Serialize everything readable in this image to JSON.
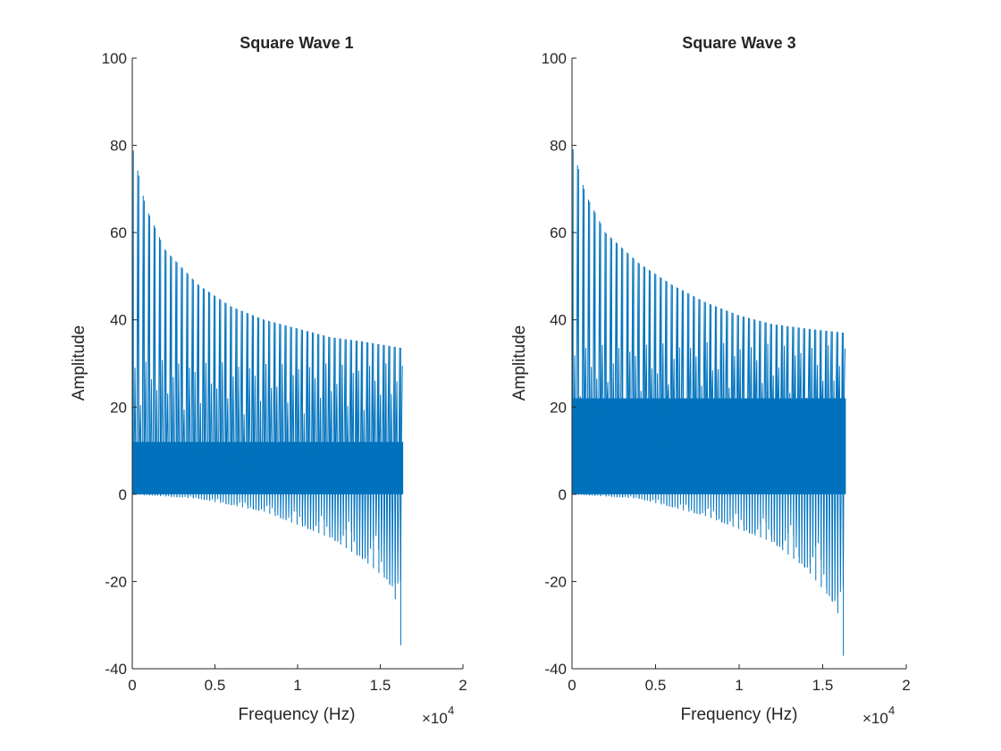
{
  "figure": {
    "background": "#ffffff"
  },
  "chart_data": [
    {
      "type": "line",
      "title": "Square Wave 1",
      "xlabel": "Frequency (Hz)",
      "ylabel": "Amplitude",
      "x_exponent_label": "×10",
      "x_exponent_power": "4",
      "xlim": [
        0,
        20000
      ],
      "ylim": [
        -40,
        100
      ],
      "xticks": [
        0,
        5000,
        10000,
        15000,
        20000
      ],
      "xtick_labels": [
        "0",
        "0.5",
        "1",
        "1.5",
        "2"
      ],
      "yticks": [
        -40,
        -20,
        0,
        20,
        40,
        60,
        80,
        100
      ],
      "ytick_labels": [
        "-40",
        "-20",
        "0",
        "20",
        "40",
        "60",
        "80",
        "100"
      ],
      "grid": false,
      "line_color": "#0072BD",
      "series": [
        {
          "x_range": [
            0,
            16384
          ],
          "spike_spacing": 330,
          "spike_envelope_top": [
            [
              0,
              80
            ],
            [
              800,
              66
            ],
            [
              2000,
              56
            ],
            [
              4000,
              48
            ],
            [
              6000,
              43
            ],
            [
              8000,
              40
            ],
            [
              10000,
              38
            ],
            [
              12000,
              36
            ],
            [
              14000,
              35
            ],
            [
              16384,
              33.5
            ]
          ],
          "secondary_envelope_top": [
            [
              0,
              31
            ],
            [
              8000,
              30
            ],
            [
              16384,
              30
            ]
          ],
          "dense_band": [
            [
              0,
              0
            ],
            [
              16384,
              12
            ]
          ],
          "lower_envelope": [
            [
              0,
              0
            ],
            [
              4000,
              -1
            ],
            [
              8000,
              -4
            ],
            [
              12000,
              -10
            ],
            [
              14000,
              -15
            ],
            [
              15500,
              -20
            ],
            [
              16000,
              -25
            ],
            [
              16200,
              -36
            ],
            [
              16384,
              -29
            ]
          ]
        }
      ]
    },
    {
      "type": "line",
      "title": "Square Wave 3",
      "xlabel": "Frequency (Hz)",
      "ylabel": "Amplitude",
      "x_exponent_label": "×10",
      "x_exponent_power": "4",
      "xlim": [
        0,
        20000
      ],
      "ylim": [
        -40,
        100
      ],
      "xticks": [
        0,
        5000,
        10000,
        15000,
        20000
      ],
      "xtick_labels": [
        "0",
        "0.5",
        "1",
        "1.5",
        "2"
      ],
      "yticks": [
        -40,
        -20,
        0,
        20,
        40,
        60,
        80,
        100
      ],
      "ytick_labels": [
        "-40",
        "-20",
        "0",
        "20",
        "40",
        "60",
        "80",
        "100"
      ],
      "grid": false,
      "line_color": "#0072BD",
      "series": [
        {
          "x_range": [
            0,
            16384
          ],
          "spike_spacing": 330,
          "spike_envelope_top": [
            [
              0,
              80
            ],
            [
              800,
              69
            ],
            [
              2000,
              60
            ],
            [
              4000,
              53
            ],
            [
              6000,
              48
            ],
            [
              8000,
              44
            ],
            [
              10000,
              41
            ],
            [
              12000,
              39
            ],
            [
              14000,
              38
            ],
            [
              16384,
              37
            ]
          ],
          "secondary_envelope_top": [
            [
              0,
              34
            ],
            [
              8000,
              35
            ],
            [
              16384,
              34
            ]
          ],
          "dense_band": [
            [
              0,
              0
            ],
            [
              16384,
              22
            ]
          ],
          "lower_envelope": [
            [
              0,
              0
            ],
            [
              4000,
              -1
            ],
            [
              8000,
              -5
            ],
            [
              12000,
              -11
            ],
            [
              14000,
              -17
            ],
            [
              15500,
              -24
            ],
            [
              16000,
              -28
            ],
            [
              16200,
              -38
            ],
            [
              16384,
              -33
            ]
          ]
        }
      ]
    }
  ]
}
